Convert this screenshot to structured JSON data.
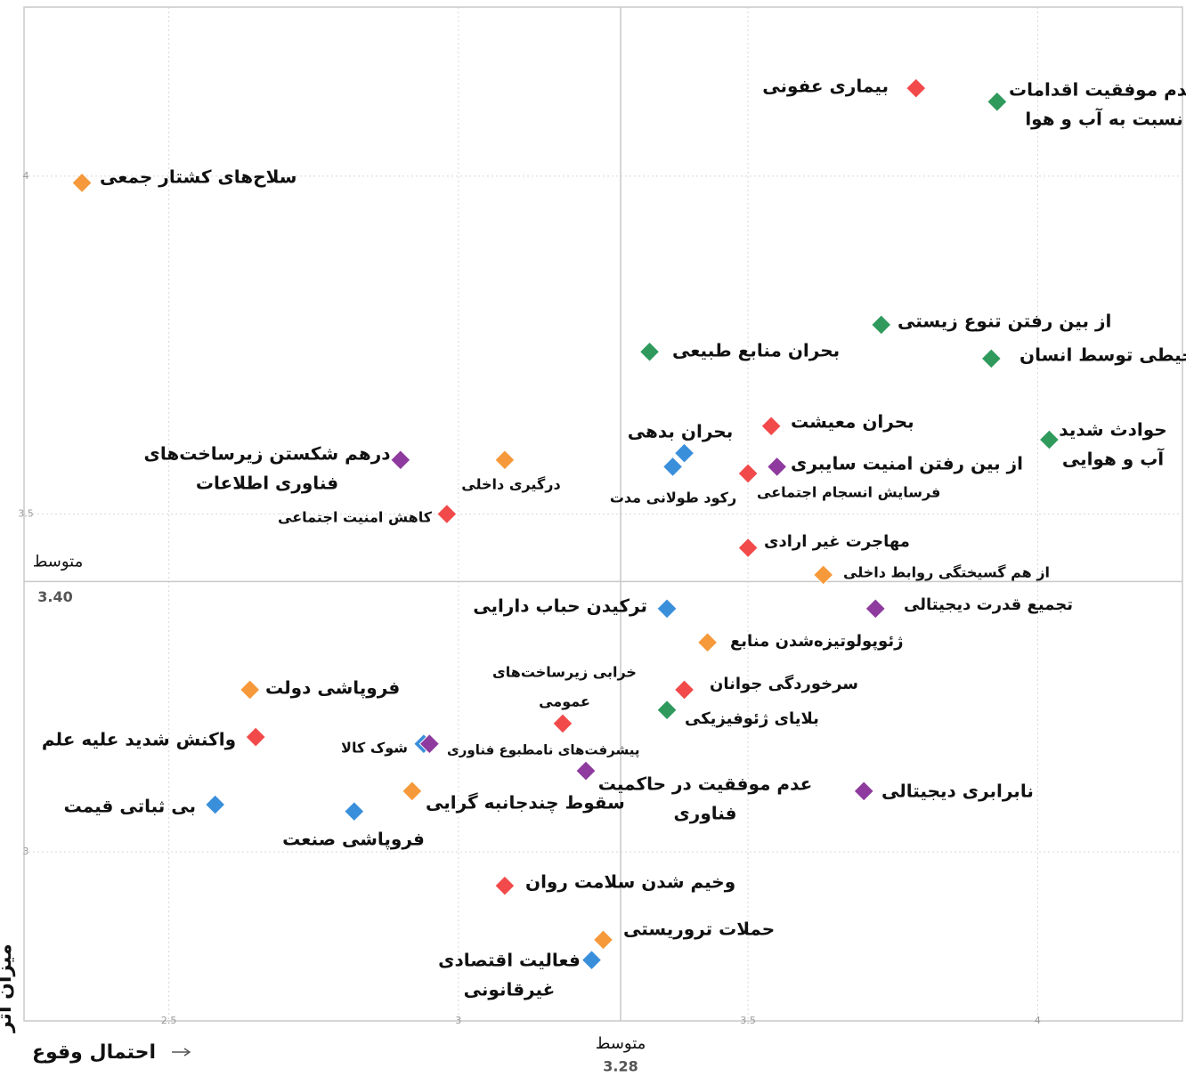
{
  "chart_data": {
    "type": "scatter",
    "x_axis_label": "احتمال وقوع",
    "y_axis_label": "میزان اثر",
    "xlim": [
      2.25,
      4.25
    ],
    "ylim": [
      2.75,
      4.25
    ],
    "xticks": [
      2.5,
      3,
      3.5,
      4
    ],
    "yticks": [
      3,
      3.5,
      4
    ],
    "grid": true,
    "mean_label": "متوسط",
    "x_mean": {
      "value": 3.28,
      "label": "3.28"
    },
    "y_mean": {
      "value": 3.4,
      "label": "3.40"
    },
    "labels": [
      [
        "بیماری عفونی"
      ],
      [
        "عدم موفقیت اقدامات",
        "نسبت به آب و هوا"
      ],
      [
        "سلاح‌های کشتار جمعی"
      ],
      [
        "از بین رفتن تنوع زیستی"
      ],
      [
        "بحران منابع طبیعی"
      ],
      [
        "آسیب محیطی توسط انسان"
      ],
      [
        "بحران معیشت"
      ],
      [
        "بحران بدهی"
      ],
      [
        "رکود طولانی مدت"
      ],
      [
        "از بین رفتن امنیت سایبری"
      ],
      [
        "فرسایش انسجام اجتماعی"
      ],
      [
        "حوادث شدید",
        "آب و هوایی"
      ],
      [
        "درهم شکستن زیرساخت‌های",
        "فناوری اطلاعات"
      ],
      [
        "درگیری داخلی"
      ],
      [
        "کاهش امنیت اجتماعی"
      ],
      [
        "مهاجرت غیر ارادی"
      ],
      [
        "از هم گسیختگی روابط داخلی"
      ],
      [
        "ترکیدن حباب دارایی"
      ],
      [
        "تجمیع قدرت دیجیتالی"
      ],
      [
        "ژئوپولوتیزه‌شدن منابع"
      ],
      [
        "فروپاشی دولت"
      ],
      [
        "سرخوردگی جوانان"
      ],
      [
        "بلایای ژئوفیزیکی"
      ],
      [
        "خرابی زیرساخت‌های",
        "عمومی"
      ],
      [
        "واکنش شدید علیه علم"
      ],
      [
        "شوک کالا"
      ],
      [
        "پیشرفت‌های نامطبوع فناوری"
      ],
      [
        "عدم موفقیت در حاکمیت",
        "فناوری"
      ],
      [
        "نابرابری دیجیتالی"
      ],
      [
        "سقوط چندجانبه گرایی"
      ],
      [
        "بی ثباتی قیمت"
      ],
      [
        "فروپاشی صنعت"
      ],
      [
        "وخیم شدن سلامت روان"
      ],
      [
        "حملات تروریستی"
      ],
      [
        "فعالیت اقتصادی",
        "غیرقانونی"
      ]
    ],
    "x": [
      3.79,
      3.93,
      2.35,
      3.73,
      3.33,
      3.92,
      3.54,
      3.39,
      3.37,
      3.55,
      3.5,
      4.02,
      2.9,
      3.08,
      2.98,
      3.5,
      3.63,
      3.36,
      3.72,
      3.43,
      2.64,
      3.39,
      3.36,
      3.18,
      2.65,
      2.94,
      2.95,
      3.22,
      3.7,
      2.92,
      2.58,
      2.82,
      3.08,
      3.25,
      3.23
    ],
    "y": [
      4.13,
      4.11,
      3.99,
      3.78,
      3.74,
      3.73,
      3.63,
      3.59,
      3.57,
      3.57,
      3.56,
      3.61,
      3.58,
      3.58,
      3.5,
      3.45,
      3.41,
      3.36,
      3.36,
      3.31,
      3.24,
      3.24,
      3.21,
      3.19,
      3.17,
      3.16,
      3.16,
      3.12,
      3.09,
      3.09,
      3.07,
      3.06,
      2.95,
      2.87,
      2.84
    ],
    "colors": [
      "#f24a4a",
      "#2f9a5c",
      "#f5993a",
      "#2f9a5c",
      "#2f9a5c",
      "#2f9a5c",
      "#f24a4a",
      "#3a8fdb",
      "#3a8fdb",
      "#8e3a9e",
      "#f24a4a",
      "#2f9a5c",
      "#8e3a9e",
      "#f5993a",
      "#f24a4a",
      "#f24a4a",
      "#f5993a",
      "#3a8fdb",
      "#8e3a9e",
      "#f5993a",
      "#f5993a",
      "#f24a4a",
      "#2f9a5c",
      "#f24a4a",
      "#f24a4a",
      "#3a8fdb",
      "#8e3a9e",
      "#8e3a9e",
      "#8e3a9e",
      "#f5993a",
      "#3a8fdb",
      "#3a8fdb",
      "#f24a4a",
      "#f5993a",
      "#3a8fdb"
    ]
  }
}
